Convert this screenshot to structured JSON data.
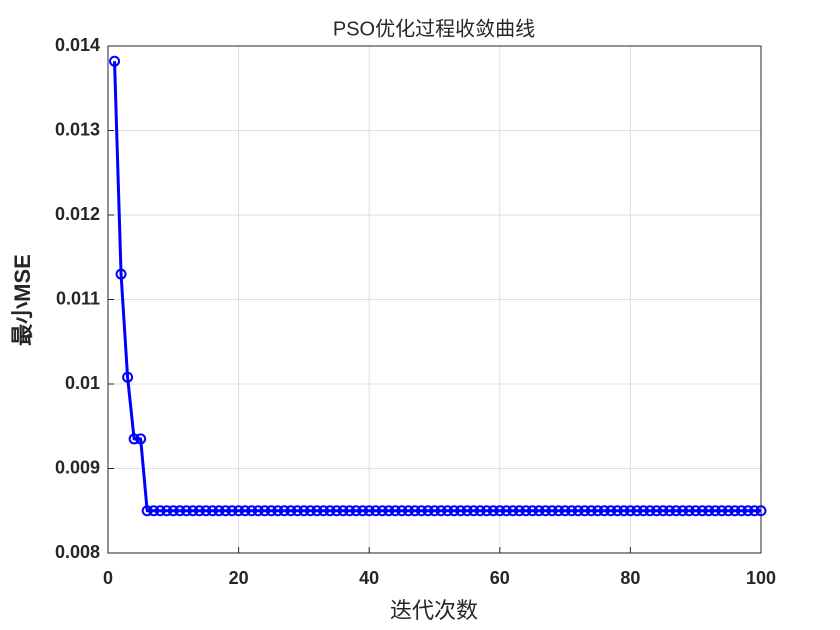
{
  "chart_data": {
    "type": "line",
    "title": "PSO优化过程收敛曲线",
    "x_label": "迭代次数",
    "y_label": "最小MSE",
    "x": [
      1,
      2,
      3,
      4,
      5,
      6,
      7,
      8,
      9,
      10,
      11,
      12,
      13,
      14,
      15,
      16,
      17,
      18,
      19,
      20,
      21,
      22,
      23,
      24,
      25,
      26,
      27,
      28,
      29,
      30,
      31,
      32,
      33,
      34,
      35,
      36,
      37,
      38,
      39,
      40,
      41,
      42,
      43,
      44,
      45,
      46,
      47,
      48,
      49,
      50,
      51,
      52,
      53,
      54,
      55,
      56,
      57,
      58,
      59,
      60,
      61,
      62,
      63,
      64,
      65,
      66,
      67,
      68,
      69,
      70,
      71,
      72,
      73,
      74,
      75,
      76,
      77,
      78,
      79,
      80,
      81,
      82,
      83,
      84,
      85,
      86,
      87,
      88,
      89,
      90,
      91,
      92,
      93,
      94,
      95,
      96,
      97,
      98,
      99,
      100
    ],
    "values": [
      0.01382,
      0.0113,
      0.01008,
      0.00935,
      0.00935,
      0.0085,
      0.0085,
      0.0085,
      0.0085,
      0.0085,
      0.0085,
      0.0085,
      0.0085,
      0.0085,
      0.0085,
      0.0085,
      0.0085,
      0.0085,
      0.0085,
      0.0085,
      0.0085,
      0.0085,
      0.0085,
      0.0085,
      0.0085,
      0.0085,
      0.0085,
      0.0085,
      0.0085,
      0.0085,
      0.0085,
      0.0085,
      0.0085,
      0.0085,
      0.0085,
      0.0085,
      0.0085,
      0.0085,
      0.0085,
      0.0085,
      0.0085,
      0.0085,
      0.0085,
      0.0085,
      0.0085,
      0.0085,
      0.0085,
      0.0085,
      0.0085,
      0.0085,
      0.0085,
      0.0085,
      0.0085,
      0.0085,
      0.0085,
      0.0085,
      0.0085,
      0.0085,
      0.0085,
      0.0085,
      0.0085,
      0.0085,
      0.0085,
      0.0085,
      0.0085,
      0.0085,
      0.0085,
      0.0085,
      0.0085,
      0.0085,
      0.0085,
      0.0085,
      0.0085,
      0.0085,
      0.0085,
      0.0085,
      0.0085,
      0.0085,
      0.0085,
      0.0085,
      0.0085,
      0.0085,
      0.0085,
      0.0085,
      0.0085,
      0.0085,
      0.0085,
      0.0085,
      0.0085,
      0.0085,
      0.0085,
      0.0085,
      0.0085,
      0.0085,
      0.0085,
      0.0085,
      0.0085,
      0.0085,
      0.0085,
      0.0085
    ],
    "color": "#0000ff",
    "marker": "circle",
    "xlim": [
      0,
      100
    ],
    "xticks": [
      0,
      20,
      40,
      60,
      80,
      100
    ],
    "ylim": [
      0.008,
      0.014
    ],
    "yticks": [
      0.008,
      0.009,
      0.01,
      0.011,
      0.012,
      0.013,
      0.014
    ],
    "grid": true
  }
}
